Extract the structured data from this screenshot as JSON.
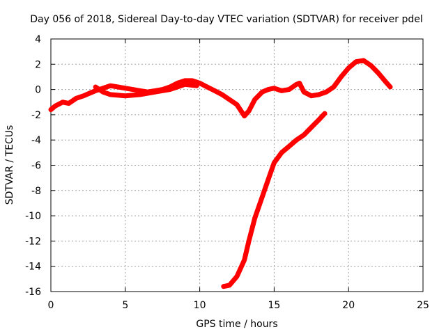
{
  "chart_data": {
    "type": "line",
    "title": "Day 056 of 2018, Sidereal Day-to-day VTEC variation (SDTVAR) for receiver pdel",
    "xlabel": "GPS time / hours",
    "ylabel": "SDTVAR / TECUs",
    "xlim": [
      0,
      25
    ],
    "ylim": [
      -16,
      4
    ],
    "xticks": [
      0,
      5,
      10,
      15,
      20,
      25
    ],
    "yticks": [
      4,
      2,
      0,
      -2,
      -4,
      -6,
      -8,
      -10,
      -12,
      -14,
      -16
    ],
    "xtick_labels": [
      "0",
      "5",
      "10",
      "15",
      "20",
      "25"
    ],
    "ytick_labels": [
      "4",
      "2",
      "0",
      "-2",
      "-4",
      "-6",
      "-8",
      "-10",
      "-12",
      "-14",
      "-16"
    ],
    "grid": true,
    "series": [
      {
        "name": "main-trace",
        "color": "#ff0000",
        "points": [
          [
            0.0,
            -1.6
          ],
          [
            0.3,
            -1.3
          ],
          [
            0.8,
            -1.0
          ],
          [
            1.2,
            -1.1
          ],
          [
            1.7,
            -0.7
          ],
          [
            2.2,
            -0.5
          ],
          [
            2.6,
            -0.3
          ],
          [
            3.0,
            -0.1
          ],
          [
            3.5,
            0.1
          ],
          [
            4.0,
            0.3
          ],
          [
            4.5,
            0.2
          ],
          [
            5.0,
            0.1
          ],
          [
            5.5,
            0.0
          ],
          [
            6.0,
            -0.1
          ],
          [
            6.5,
            -0.2
          ],
          [
            7.0,
            -0.1
          ],
          [
            7.5,
            0.0
          ],
          [
            8.0,
            0.2
          ],
          [
            8.5,
            0.5
          ],
          [
            9.0,
            0.7
          ],
          [
            9.5,
            0.7
          ],
          [
            10.0,
            0.5
          ],
          [
            10.5,
            0.2
          ],
          [
            11.0,
            -0.1
          ],
          [
            11.5,
            -0.4
          ],
          [
            12.0,
            -0.8
          ],
          [
            12.5,
            -1.2
          ],
          [
            13.0,
            -2.1
          ],
          [
            13.3,
            -1.7
          ],
          [
            13.7,
            -0.8
          ],
          [
            14.2,
            -0.2
          ],
          [
            14.6,
            0.0
          ],
          [
            15.0,
            0.1
          ],
          [
            15.5,
            -0.1
          ],
          [
            16.0,
            0.0
          ],
          [
            16.5,
            0.4
          ],
          [
            16.7,
            0.5
          ],
          [
            17.0,
            -0.2
          ],
          [
            17.5,
            -0.5
          ],
          [
            18.0,
            -0.4
          ],
          [
            18.5,
            -0.2
          ],
          [
            19.0,
            0.2
          ],
          [
            19.5,
            1.0
          ],
          [
            20.0,
            1.7
          ],
          [
            20.5,
            2.2
          ],
          [
            21.0,
            2.3
          ],
          [
            21.5,
            1.9
          ],
          [
            22.0,
            1.3
          ],
          [
            22.5,
            0.6
          ],
          [
            22.8,
            0.2
          ]
        ]
      },
      {
        "name": "secondary-band",
        "color": "#ff0000",
        "points": [
          [
            3.0,
            0.2
          ],
          [
            3.5,
            -0.2
          ],
          [
            4.0,
            -0.4
          ],
          [
            5.0,
            -0.5
          ],
          [
            6.0,
            -0.4
          ],
          [
            7.0,
            -0.2
          ],
          [
            8.0,
            0.0
          ],
          [
            9.0,
            0.4
          ],
          [
            9.8,
            0.3
          ]
        ]
      },
      {
        "name": "descending-arc",
        "color": "#ff0000",
        "points": [
          [
            11.6,
            -15.6
          ],
          [
            12.0,
            -15.5
          ],
          [
            12.5,
            -14.8
          ],
          [
            13.0,
            -13.5
          ],
          [
            13.3,
            -12.0
          ],
          [
            13.7,
            -10.2
          ],
          [
            14.2,
            -8.5
          ],
          [
            14.7,
            -6.8
          ],
          [
            15.0,
            -5.8
          ],
          [
            15.5,
            -5.0
          ],
          [
            16.0,
            -4.5
          ],
          [
            16.5,
            -4.0
          ],
          [
            17.0,
            -3.6
          ],
          [
            17.5,
            -3.0
          ],
          [
            18.0,
            -2.4
          ],
          [
            18.4,
            -1.9
          ]
        ]
      }
    ]
  }
}
